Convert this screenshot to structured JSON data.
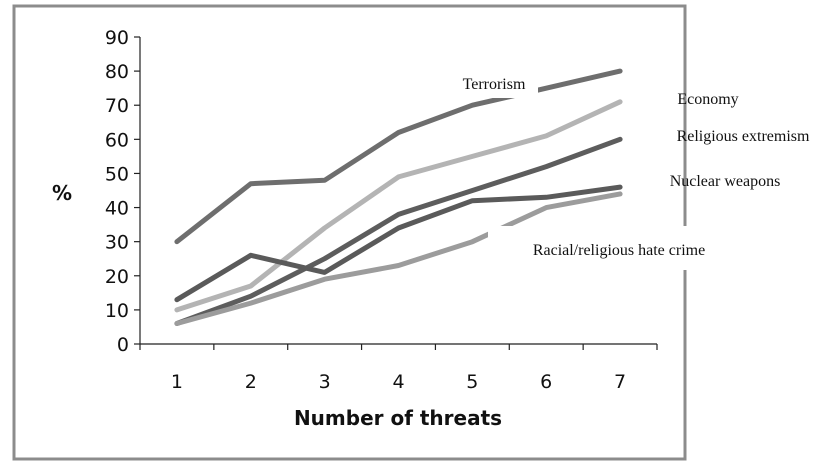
{
  "chart_data": {
    "type": "line",
    "xlabel": "Number of threats",
    "ylabel": "%",
    "x": [
      1,
      2,
      3,
      4,
      5,
      6,
      7
    ],
    "ylim": [
      0,
      90
    ],
    "y_ticks": [
      0,
      10,
      20,
      30,
      40,
      50,
      60,
      70,
      80,
      90
    ],
    "grid": false,
    "legend": "inline labels to the right of the plot",
    "series": [
      {
        "name": "Terrorism",
        "values": [
          30,
          47,
          48,
          62,
          70,
          75,
          80
        ],
        "color": "#6e6e6e"
      },
      {
        "name": "Economy",
        "values": [
          10,
          17,
          34,
          49,
          55,
          61,
          71
        ],
        "color": "#b4b4b4"
      },
      {
        "name": "Religious extremism",
        "values": [
          6,
          14,
          25,
          38,
          45,
          52,
          60
        ],
        "color": "#5d5d5d"
      },
      {
        "name": "Nuclear weapons",
        "values": [
          13,
          26,
          21,
          34,
          42,
          43,
          46
        ],
        "color": "#5a5a5a"
      },
      {
        "name": "Racial/religious hate crime",
        "values": [
          6,
          12,
          19,
          23,
          30,
          40,
          44
        ],
        "color": "#9c9c9c"
      }
    ]
  }
}
